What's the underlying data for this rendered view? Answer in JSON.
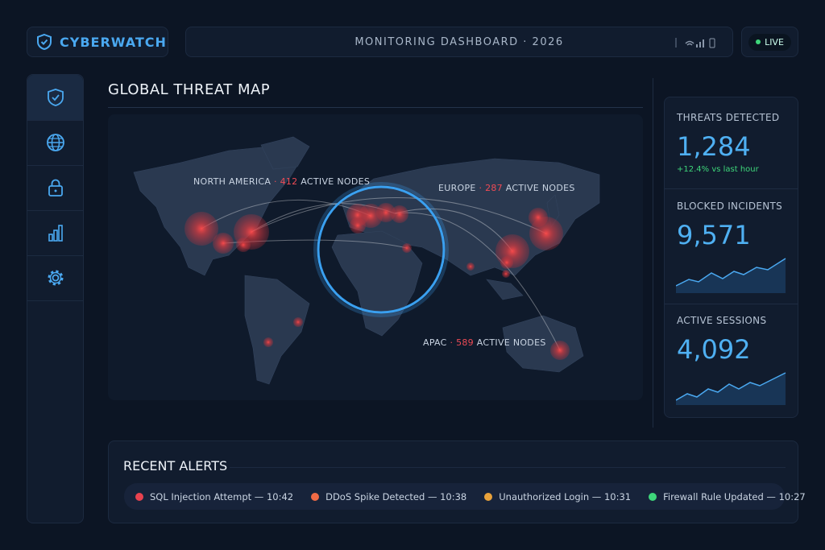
{
  "header": {
    "brand": "CYBERWATCH",
    "title": "MONITORING DASHBOARD · 2026",
    "status": "LIVE"
  },
  "map": {
    "title": "GLOBAL THREAT MAP",
    "labels": [
      {
        "region": "NORTH AMERICA",
        "separator": "·",
        "count": "412",
        "unit": "ACTIVE NODES"
      },
      {
        "region": "EUROPE",
        "separator": "·",
        "count": "287",
        "unit": "ACTIVE NODES"
      },
      {
        "region": "APAC",
        "separator": "·",
        "count": "589",
        "unit": "ACTIVE NODES"
      }
    ]
  },
  "stats": [
    {
      "label": "THREATS DETECTED",
      "value": "1,284",
      "change": "+12.4% vs last hour"
    },
    {
      "label": "BLOCKED INCIDENTS",
      "value": "9,571"
    },
    {
      "label": "ACTIVE SESSIONS",
      "value": "4,092"
    }
  ],
  "alerts": {
    "title": "RECENT ALERTS",
    "items": [
      {
        "text": "SQL Injection Attempt — 10:42",
        "color": "#e8424f"
      },
      {
        "text": "DDoS Spike Detected — 10:38",
        "color": "#f06a45"
      },
      {
        "text": "Unauthorized Login — 10:31",
        "color": "#e9a23b"
      },
      {
        "text": "Firewall Rule Updated — 10:27",
        "color": "#3ed67a"
      }
    ]
  }
}
